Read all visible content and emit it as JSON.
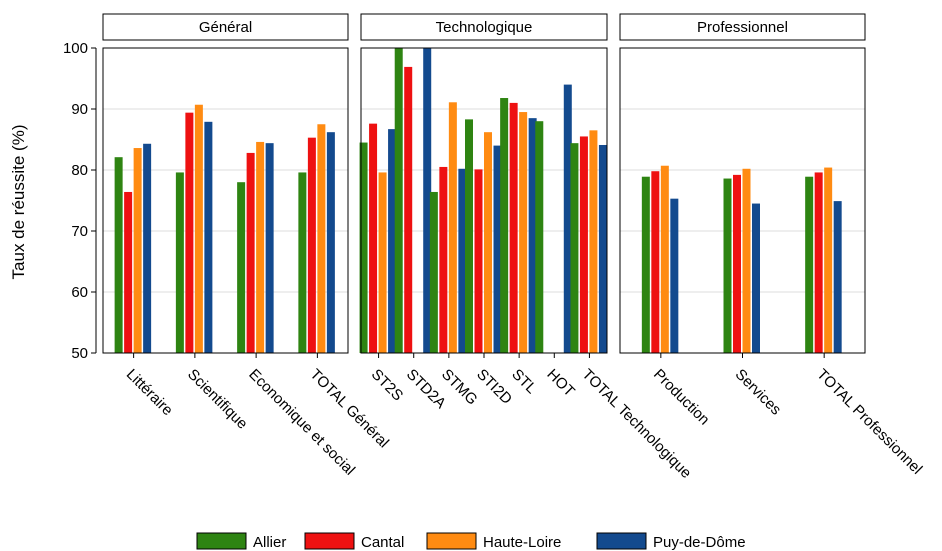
{
  "chart_data": {
    "type": "bar",
    "ylabel": "Taux de réussite (%)",
    "ylim": [
      50,
      100
    ],
    "yticks": [
      50,
      60,
      70,
      80,
      90,
      100
    ],
    "grid": true,
    "legend_position": "bottom",
    "colors": {
      "Allier": "#2e8412",
      "Cantal": "#ee1111",
      "Haute-Loire": "#ff8b12",
      "Puy-de-Dôme": "#134a8e"
    },
    "series_names": [
      "Allier",
      "Cantal",
      "Haute-Loire",
      "Puy-de-Dôme"
    ],
    "panels": [
      {
        "title": "Général",
        "categories": [
          "Littéraire",
          "Scientifique",
          "Economique et social",
          "TOTAL Général"
        ],
        "series": [
          {
            "name": "Allier",
            "values": [
              82.1,
              79.6,
              78.0,
              79.6
            ]
          },
          {
            "name": "Cantal",
            "values": [
              76.4,
              89.4,
              82.8,
              85.3
            ]
          },
          {
            "name": "Haute-Loire",
            "values": [
              83.6,
              90.7,
              84.6,
              87.5
            ]
          },
          {
            "name": "Puy-de-Dôme",
            "values": [
              84.3,
              87.9,
              84.4,
              86.2
            ]
          }
        ]
      },
      {
        "title": "Technologique",
        "categories": [
          "ST2S",
          "STD2A",
          "STMG",
          "STI2D",
          "STL",
          "HOT",
          "TOTAL Technologique"
        ],
        "series": [
          {
            "name": "Allier",
            "values": [
              84.5,
              100.0,
              76.4,
              88.3,
              91.8,
              88.0,
              84.4
            ]
          },
          {
            "name": "Cantal",
            "values": [
              87.6,
              96.9,
              80.5,
              80.1,
              91.0,
              null,
              85.5
            ]
          },
          {
            "name": "Haute-Loire",
            "values": [
              79.6,
              null,
              91.1,
              86.2,
              89.5,
              null,
              86.5
            ]
          },
          {
            "name": "Puy-de-Dôme",
            "values": [
              86.7,
              100.0,
              80.2,
              84.0,
              88.5,
              94.0,
              84.1
            ]
          }
        ]
      },
      {
        "title": "Professionnel",
        "categories": [
          "Production",
          "Services",
          "TOTAL Professionnel"
        ],
        "series": [
          {
            "name": "Allier",
            "values": [
              78.9,
              78.6,
              78.9
            ]
          },
          {
            "name": "Cantal",
            "values": [
              79.8,
              79.2,
              79.6
            ]
          },
          {
            "name": "Haute-Loire",
            "values": [
              80.7,
              80.2,
              80.4
            ]
          },
          {
            "name": "Puy-de-Dôme",
            "values": [
              75.3,
              74.5,
              74.9
            ]
          }
        ]
      }
    ]
  }
}
